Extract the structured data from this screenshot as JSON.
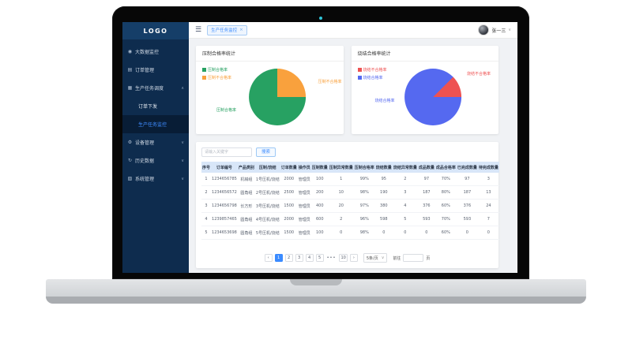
{
  "laptop": {
    "camera_color": "#2fc4d8"
  },
  "sidebar": {
    "logo": "LOGO",
    "items": [
      {
        "label": "大数据监控",
        "icon": "monitor-icon"
      },
      {
        "label": "订单管理",
        "icon": "order-icon"
      },
      {
        "label": "生产任务调度",
        "icon": "task-icon",
        "caret": "up"
      },
      {
        "label": "订单下发",
        "submenu": true
      },
      {
        "label": "生产任务监控",
        "submenu": true,
        "active": true
      },
      {
        "label": "设备管理",
        "icon": "device-icon",
        "caret": "down"
      },
      {
        "label": "历史数据",
        "icon": "history-icon",
        "caret": "down"
      },
      {
        "label": "系统管理",
        "icon": "system-icon",
        "caret": "down"
      }
    ]
  },
  "topbar": {
    "tab": "生产任务监控",
    "tab_close": "×",
    "user_name": "张一三",
    "user_caret": "∨"
  },
  "chart_data": [
    {
      "type": "pie",
      "title": "压制合格率统计",
      "start_angle": 0,
      "slices": [
        {
          "label": "压制不合格率",
          "value": 25,
          "color": "#f9a13d"
        },
        {
          "label": "压制合格率",
          "value": 75,
          "color": "#27a162"
        }
      ],
      "legend": [
        {
          "label": "压制合格率",
          "color": "#27a162"
        },
        {
          "label": "压制不合格率",
          "color": "#f9a13d"
        }
      ],
      "legend_position": "top-left",
      "callouts": [
        {
          "label": "压制不合格率",
          "color": "#f9a13d",
          "position": "right"
        },
        {
          "label": "压制合格率",
          "color": "#27a162",
          "position": "bottom-left"
        }
      ]
    },
    {
      "type": "pie",
      "title": "烧结合格率统计",
      "start_angle": 45,
      "slices": [
        {
          "label": "烧结不合格率",
          "value": 12.5,
          "color": "#ee5252"
        },
        {
          "label": "烧结合格率",
          "value": 87.5,
          "color": "#5569f0"
        }
      ],
      "legend": [
        {
          "label": "烧结不合格率",
          "color": "#ee5252"
        },
        {
          "label": "烧结合格率",
          "color": "#5569f0"
        }
      ],
      "legend_position": "top-left",
      "callouts": [
        {
          "label": "烧结不合格率",
          "color": "#ee5252",
          "position": "top-right"
        },
        {
          "label": "烧结合格率",
          "color": "#5569f0",
          "position": "left"
        }
      ]
    }
  ],
  "table": {
    "search_placeholder": "请输入关键字",
    "search_button": "搜索",
    "columns": [
      "序号",
      "订单编号",
      "产品类别",
      "压制/烧结",
      "订单数量",
      "操作员",
      "压制数量",
      "压制异常数量",
      "压制合格率",
      "烧结数量",
      "烧结异常数量",
      "成品数量",
      "成品合格率",
      "已完成数量",
      "待完成数量"
    ],
    "rows": [
      [
        "1",
        "1234656785",
        "机械组",
        "1号压机/烧结",
        "2000",
        "管理员",
        "100",
        "1",
        "99%",
        "95",
        "2",
        "97",
        "70%",
        "97",
        "3"
      ],
      [
        "2",
        "1234656572",
        "圆角组",
        "2号压机/烧结",
        "2500",
        "管理员",
        "200",
        "10",
        "98%",
        "190",
        "3",
        "187",
        "80%",
        "187",
        "13"
      ],
      [
        "3",
        "1234656798",
        "长方形",
        "3号压机/烧结",
        "1500",
        "管理员",
        "400",
        "20",
        "97%",
        "380",
        "4",
        "376",
        "60%",
        "376",
        "24"
      ],
      [
        "4",
        "1239857465",
        "圆角组",
        "4号压机/烧结",
        "2000",
        "管理员",
        "600",
        "2",
        "96%",
        "598",
        "5",
        "593",
        "70%",
        "593",
        "7"
      ],
      [
        "5",
        "1234653698",
        "圆角组",
        "5号压机/烧结",
        "1500",
        "管理员",
        "100",
        "0",
        "98%",
        "0",
        "0",
        "0",
        "60%",
        "0",
        "0"
      ]
    ]
  },
  "pagination": {
    "prev": "‹",
    "pages": [
      "1",
      "2",
      "3",
      "4",
      "5"
    ],
    "active_page": "1",
    "ellipsis": "•••",
    "last_page": "10",
    "next": "›",
    "page_size": "5条/页",
    "size_caret": "∨",
    "goto_label": "前往",
    "goto_suffix": "页"
  }
}
